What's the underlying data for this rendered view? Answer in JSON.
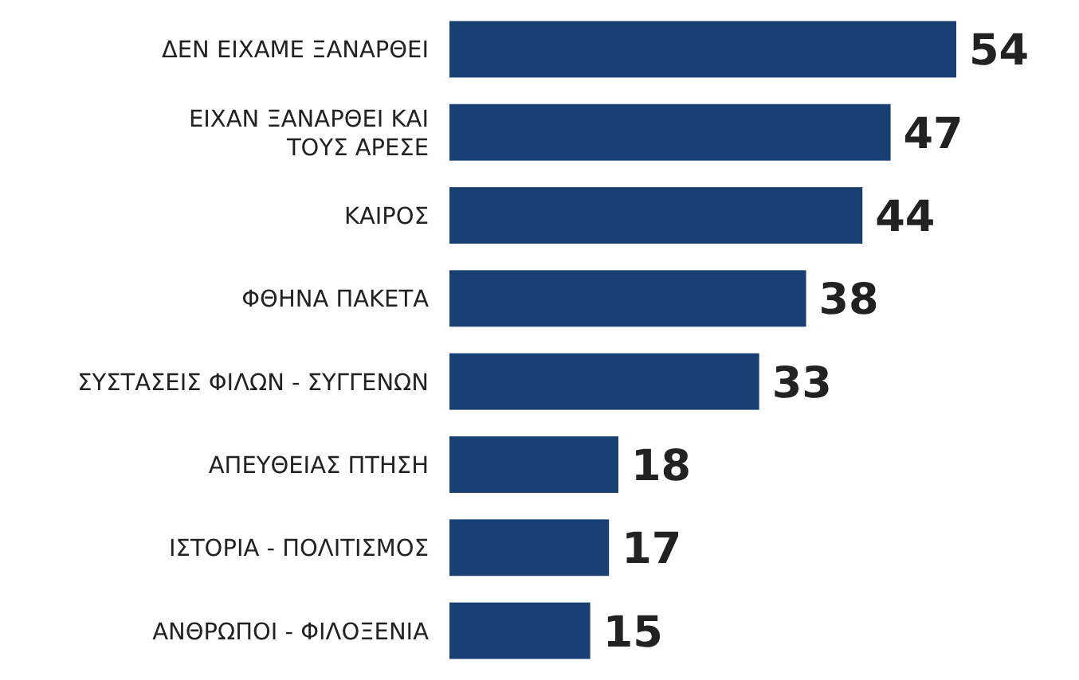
{
  "chart_data": {
    "type": "bar",
    "orientation": "horizontal",
    "data_labels": true,
    "categories": [
      "ΔΕΝ ΕΙΧΑΜΕ ΞΑΝΑΡΘΕΙ",
      "ΕΙΧΑΝ ΞΑΝΑΡΘΕΙ ΚΑΙ ΤΟΥΣ ΑΡΕΣΕ",
      "ΚΑΙΡΟΣ",
      "ΦΘΗΝΑ ΠΑΚΕΤΑ",
      "ΣΥΣΤΑΣΕΙΣ ΦΙΛΩΝ - ΣΥΓΓΕΝΩΝ",
      "ΑΠΕΥΘΕΙΑΣ ΠΤΗΣΗ",
      "ΙΣΤΟΡΙΑ - ΠΟΛΙΤΙΣΜΟΣ",
      "ΑΝΘΡΩΠΟΙ - ΦΙΛΟΞΕΝΙΑ"
    ],
    "values": [
      54,
      47,
      44,
      38,
      33,
      18,
      17,
      15
    ],
    "color": "#173f72"
  }
}
